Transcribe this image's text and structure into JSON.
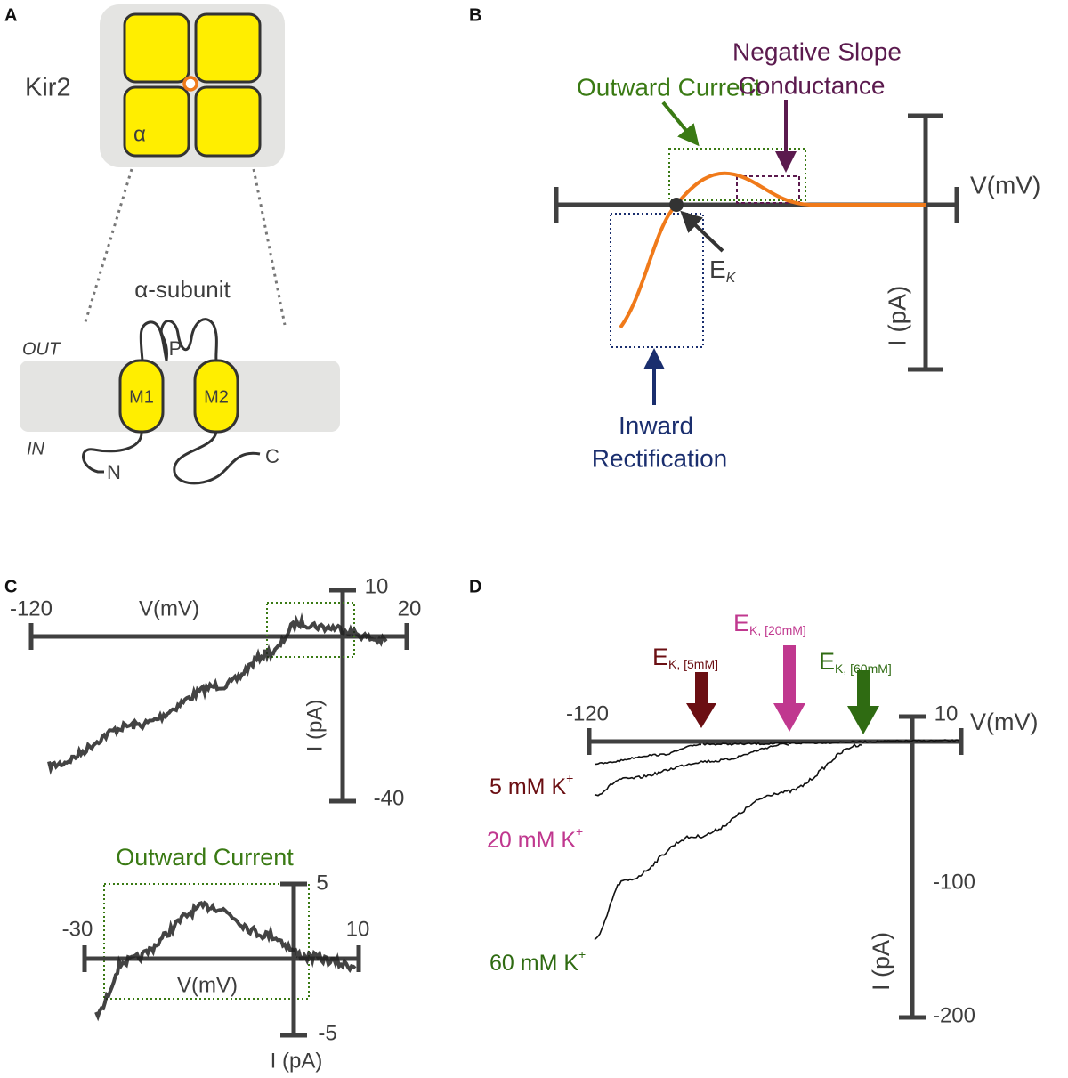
{
  "panels": {
    "A": {
      "label": "A",
      "channel": "Kir2",
      "subunit_mark": "α",
      "subunit_title": "α-subunit",
      "out": "OUT",
      "in": "IN",
      "segments": [
        "M1",
        "M2"
      ],
      "pore": "P",
      "n_terminus": "N",
      "c_terminus": "C"
    },
    "B": {
      "label": "B",
      "x_axis": "V(mV)",
      "y_axis": "I (pA)",
      "outward": "Outward Current",
      "negative_slope": [
        "Negative Slope",
        "Conductance"
      ],
      "inward": [
        "Inward",
        "Rectification"
      ],
      "ek": {
        "main": "E",
        "sub": "K"
      }
    },
    "C": {
      "label": "C",
      "top": {
        "x_min": "-120",
        "x_max": "20",
        "x_axis": "V(mV)",
        "y_max": "10",
        "y_min": "-40",
        "y_axis": "I (pA)"
      },
      "bottom": {
        "title": "Outward Current",
        "x_min": "-30",
        "x_max": "10",
        "x_axis": "V(mV)",
        "y_max": "5",
        "y_min": "-5",
        "y_axis": "I (pA)"
      }
    },
    "D": {
      "label": "D",
      "x_min": "-120",
      "x_max": "10",
      "x_axis": "V(mV)",
      "y_mid": "-100",
      "y_min": "-200",
      "y_axis": "I (pA)",
      "reversal": [
        {
          "main": "E",
          "sub": "K, [5mM]"
        },
        {
          "main": "E",
          "sub": "K, [20mM]"
        },
        {
          "main": "E",
          "sub": "K, [60mM]"
        }
      ],
      "traces": [
        {
          "main": "5 mM K",
          "sup": "+"
        },
        {
          "main": "20 mM K",
          "sup": "+"
        },
        {
          "main": "60 mM K",
          "sup": "+"
        }
      ]
    }
  }
}
